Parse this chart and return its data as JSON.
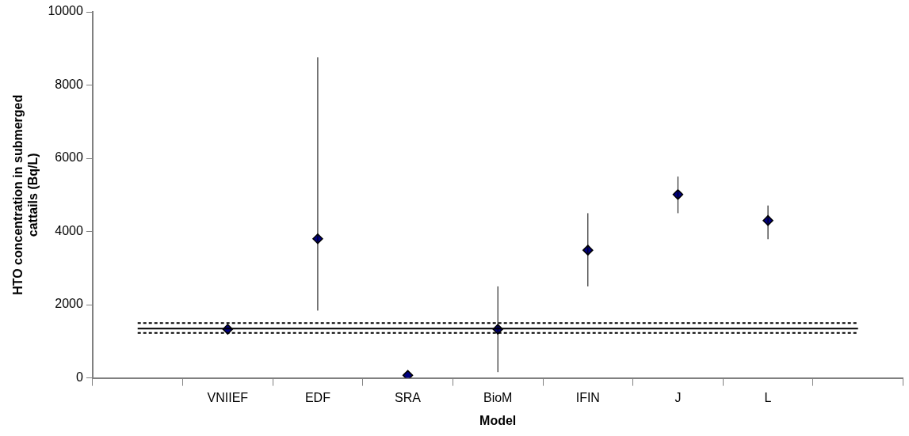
{
  "chart_data": {
    "type": "scatter",
    "xlabel": "Model",
    "ylabel": "HTO concentration in submerged\ncattails (Bq/L)",
    "categories": [
      null,
      "VNIIEF",
      "EDF",
      "SRA",
      "BioM",
      "IFIN",
      "J",
      "L",
      null
    ],
    "series": [
      {
        "type": "line",
        "color": "#000000",
        "line_style": "solid",
        "marker": "none",
        "values": [
          1350,
          1350,
          1350,
          1350,
          1350,
          1350,
          1350,
          1350,
          1350
        ]
      },
      {
        "type": "line",
        "color": "#000000",
        "line_style": "dashed",
        "marker": "none",
        "values": [
          1500,
          1500,
          1500,
          1500,
          1500,
          1500,
          1500,
          1500,
          1500
        ]
      },
      {
        "type": "line",
        "color": "#000000",
        "line_style": "dashed",
        "marker": "none",
        "values": [
          1230,
          1230,
          1230,
          1230,
          1230,
          1230,
          1230,
          1230,
          1230
        ]
      },
      {
        "color": "#000080",
        "marker": "diamond",
        "values": [
          null,
          1330,
          3800,
          70,
          1330,
          3490,
          5010,
          4300,
          null
        ],
        "errors": [
          null,
          null,
          [
            1840,
            8760
          ],
          null,
          [
            160,
            2500
          ],
          [
            2500,
            4500
          ],
          [
            4500,
            5500
          ],
          [
            3790,
            4710
          ],
          null
        ]
      }
    ],
    "ylim": [
      0,
      10000
    ],
    "yticks": [
      0,
      2000,
      4000,
      6000,
      8000,
      10000
    ],
    "grid": false,
    "legend": false
  }
}
